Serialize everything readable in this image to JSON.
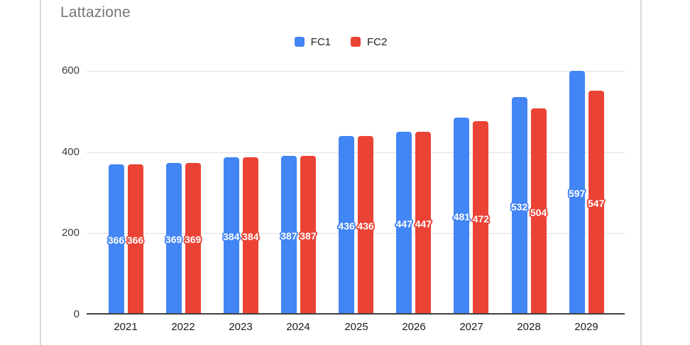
{
  "chart_data": {
    "type": "bar",
    "title": "Lattazione",
    "categories": [
      "2021",
      "2022",
      "2023",
      "2024",
      "2025",
      "2026",
      "2027",
      "2028",
      "2029"
    ],
    "series": [
      {
        "name": "FC1",
        "color": "#4285F4",
        "values": [
          366,
          369,
          384,
          387,
          436,
          447,
          481,
          532,
          597
        ]
      },
      {
        "name": "FC2",
        "color": "#EA4335",
        "values": [
          366,
          369,
          384,
          387,
          436,
          447,
          472,
          504,
          547
        ]
      }
    ],
    "ylabel": "",
    "xlabel": "",
    "ylim": [
      0,
      600
    ],
    "y_ticks": [
      0,
      200,
      400,
      600
    ],
    "grid": true,
    "legend_position": "top",
    "data_labels": "centered-on-bar"
  },
  "legend": {
    "items": [
      {
        "label": "FC1",
        "color": "#4285F4"
      },
      {
        "label": "FC2",
        "color": "#EA4335"
      }
    ]
  },
  "colors": {
    "title_text": "#757575",
    "card_border": "#d9d9d9",
    "gridline": "#e2e2e2",
    "axis_line": "#404040",
    "label_text": "#ffffff"
  }
}
